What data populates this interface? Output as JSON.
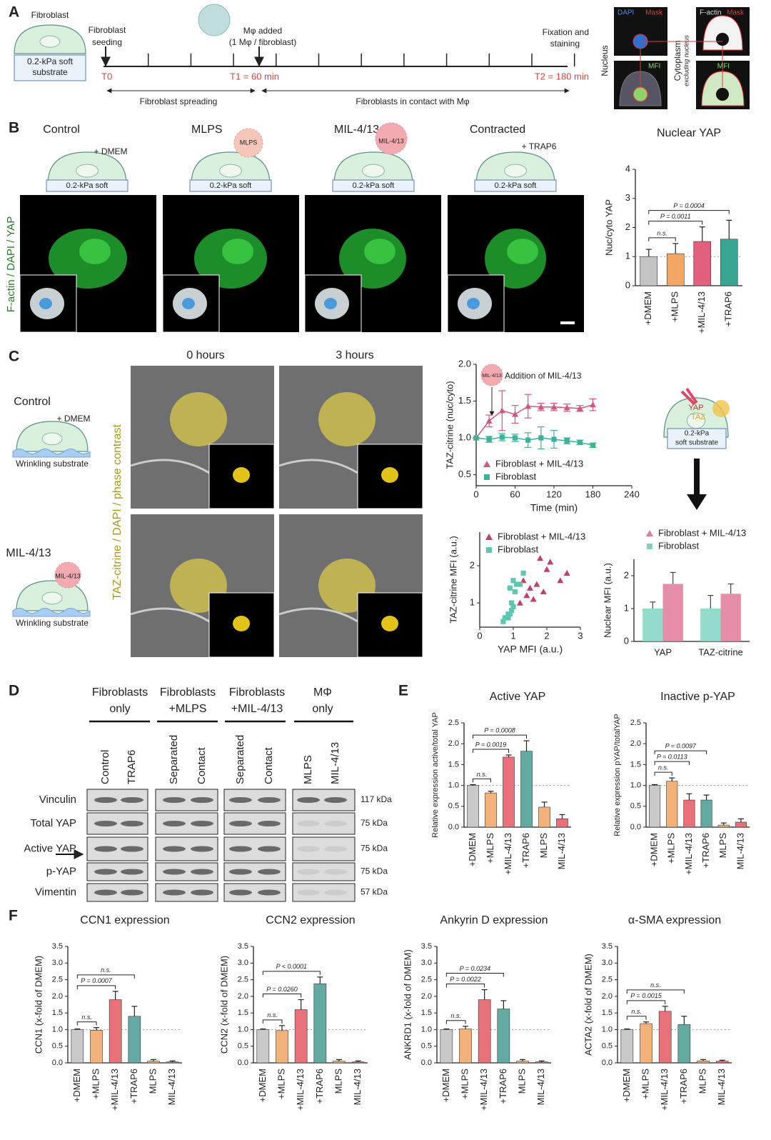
{
  "panel_a": {
    "label": "A",
    "cell_label": "Fibroblast",
    "substrate": [
      "0.2-kPa soft",
      "substrate"
    ],
    "seeding": [
      "Fibroblast",
      "seeding"
    ],
    "added": [
      "Mφ added",
      "(1 Mφ / fibroblast)"
    ],
    "fixation": [
      "Fixation and",
      "staining"
    ],
    "t0": "T0",
    "t1": "T1 = 60 min",
    "t2": "T2 = 180 min",
    "spreading": "Fibroblast spreading",
    "contact": "Fibroblasts in contact with Mφ",
    "mask_labels": [
      "DAPI",
      "Mask",
      "F-actin",
      "Mask",
      "MFI",
      "MFI"
    ],
    "nucleus": "Nucleus",
    "cytoplasm": [
      "Cytoplasm",
      "excluding nucleus"
    ]
  },
  "panel_b": {
    "label": "B",
    "conditions": [
      "Control",
      "MLPS",
      "MIL-4/13",
      "Contracted"
    ],
    "treatments": [
      "+ DMEM",
      "+ TRAP6"
    ],
    "macrophages": [
      "MLPS",
      "MIL-4/13"
    ],
    "substrate": "0.2-kPa soft",
    "stain": "F-actin / DAPI / YAP"
  },
  "panel_c": {
    "label": "C",
    "times": [
      "0 hours",
      "3 hours"
    ],
    "conditions": [
      "Control",
      "MIL-4/13"
    ],
    "treatment": "+ DMEM",
    "macrophage": "MIL-4/13",
    "substrate": "Wrinkling substrate",
    "stain": "TAZ-citrine / DAPI / phase contrast",
    "addition": "Addition of MIL-4/13",
    "addition_macrophage": "MIL-4/13",
    "diagram": [
      "YAP",
      "TAZ",
      "0.2-kPa",
      "soft substrate"
    ]
  },
  "panel_d": {
    "label": "D",
    "groups": [
      [
        "Fibroblasts",
        "only"
      ],
      [
        "Fibroblasts",
        "+MLPS"
      ],
      [
        "Fibroblasts",
        "+MIL-4/13"
      ],
      [
        "MΦ",
        "only"
      ]
    ],
    "lanes": [
      "Control",
      "TRAP6",
      "Separated",
      "Contact",
      "Separated",
      "Contact",
      "MLPS",
      "MIL-4/13"
    ],
    "proteins": [
      "Vinculin",
      "Total YAP",
      "Active YAP",
      "p-YAP",
      "Vimentin"
    ],
    "sizes": [
      "117 kDa",
      "75 kDa",
      "75 kDa",
      "75 kDa",
      "57 kDa"
    ]
  },
  "panel_e": {
    "label": "E"
  },
  "panel_f": {
    "label": "F"
  },
  "chart_data": [
    {
      "type": "bar",
      "title": "Nuclear YAP",
      "ylabel": "Nuc/cyto YAP",
      "categories": [
        "+DMEM",
        "+MLPS",
        "+MIL-4/13",
        "+TRAP6"
      ],
      "values": [
        1.0,
        1.1,
        1.52,
        1.6
      ],
      "errors": [
        0.25,
        0.35,
        0.5,
        0.65
      ],
      "colors": [
        "#c4c4c4",
        "#f4a765",
        "#e2607c",
        "#3aa593"
      ],
      "ylim": [
        0,
        4
      ],
      "yticks": [
        0,
        1,
        2,
        3,
        4
      ],
      "hline": 1,
      "annotations": [
        {
          "text": "n.s.",
          "pair": [
            0,
            1
          ]
        },
        {
          "text": "P = 0.0011",
          "pair": [
            0,
            2
          ]
        },
        {
          "text": "P = 0.0004",
          "pair": [
            0,
            3
          ]
        }
      ]
    },
    {
      "type": "line",
      "xlabel": "Time (min)",
      "ylabel": "TAZ-citrine (nuc/cyto)",
      "x": [
        0,
        20,
        40,
        60,
        80,
        100,
        120,
        140,
        160,
        180
      ],
      "xlim": [
        0,
        240
      ],
      "xticks": [
        0,
        60,
        120,
        180,
        240
      ],
      "ylim": [
        0.35,
        2.0
      ],
      "yticks": [
        {
          "value": 0.5,
          "label": "0.5"
        },
        {
          "value": 1,
          "label": "1.0"
        },
        {
          "value": 1.5,
          "label": "1.5"
        },
        {
          "value": 2,
          "label": "2.0"
        }
      ],
      "series": [
        {
          "name": "Fibroblast + MIL-4/13",
          "color": "#d4567e",
          "marker": "triangle",
          "values": [
            1.0,
            1.23,
            1.37,
            1.32,
            1.43,
            1.42,
            1.42,
            1.41,
            1.4,
            1.45
          ],
          "errors": [
            0,
            0.08,
            0.27,
            0.12,
            0.16,
            0.05,
            0.05,
            0.05,
            0.04,
            0.08
          ]
        },
        {
          "name": "Fibroblast",
          "color": "#3bb39a",
          "marker": "square",
          "values": [
            1.0,
            0.98,
            1.01,
            1.0,
            0.97,
            1.0,
            0.98,
            0.96,
            0.94,
            0.9
          ],
          "errors": [
            0,
            0.04,
            0.05,
            0.05,
            0.1,
            0.15,
            0.12,
            0.04,
            0.03,
            0.03
          ]
        }
      ]
    },
    {
      "type": "scatter",
      "xlabel": "YAP   MFI (a.u.)",
      "ylabel": "TAZ-citrine MFI (a.u.)",
      "xlim": [
        0,
        3
      ],
      "xticks": [
        0,
        1,
        2,
        3
      ],
      "ylim": [
        0.35,
        2.9
      ],
      "yticks": [
        1,
        2
      ],
      "series": [
        {
          "name": "Fibroblast + MIL-4/13",
          "color": "#c0406a",
          "marker": "triangle",
          "x": [
            1.2,
            1.4,
            1.5,
            1.6,
            1.7,
            1.9,
            2.0,
            2.1,
            2.4,
            2.6,
            1.3,
            1.8
          ],
          "values": [
            1.0,
            1.2,
            1.4,
            1.1,
            1.5,
            1.3,
            1.9,
            2.1,
            1.6,
            1.8,
            1.6,
            2.2
          ]
        },
        {
          "name": "Fibroblast",
          "color": "#5cc8b0",
          "marker": "square",
          "x": [
            0.7,
            0.75,
            0.8,
            0.85,
            0.9,
            0.95,
            1.0,
            1.05,
            1.1,
            0.9,
            1.0,
            1.2,
            0.85,
            1.3,
            0.95
          ],
          "values": [
            0.5,
            0.6,
            0.6,
            0.7,
            0.7,
            0.8,
            0.9,
            1.3,
            1.5,
            1.4,
            1.6,
            1.5,
            0.6,
            1.8,
            1.0
          ]
        }
      ]
    },
    {
      "type": "grouped_bar",
      "ylabel": "Nuclear MFI (a.u.)",
      "categories": [
        "YAP",
        "TAZ-citrine"
      ],
      "ylim": [
        0,
        2.5
      ],
      "yticks": [
        0,
        1,
        2
      ],
      "series": [
        {
          "name": "Fibroblast + MIL-4/13",
          "color": "#e27a98",
          "marker": "triangle",
          "values": [
            1.75,
            1.45
          ],
          "errors": [
            0.35,
            0.3
          ]
        },
        {
          "name": "Fibroblast",
          "color": "#7fd3bf",
          "marker": "square",
          "values": [
            1.0,
            1.0
          ],
          "errors": [
            0.2,
            0.4
          ]
        }
      ]
    },
    {
      "type": "bar",
      "title": "Active YAP",
      "ylabel": "Relative expression active/total YAP",
      "categories": [
        "+DMEM",
        "+MLPS",
        "+MIL-4/13",
        "+TRAP6",
        "MLPS",
        "MIL-4/13"
      ],
      "values": [
        1.0,
        0.82,
        1.68,
        1.82,
        0.48,
        0.2
      ],
      "errors": [
        0.02,
        0.04,
        0.05,
        0.25,
        0.12,
        0.1
      ],
      "colors": [
        "#c9c9c9",
        "#f2b27a",
        "#e9727a",
        "#62aaa2",
        "#f2b27a",
        "#e9727a"
      ],
      "ylim": [
        0,
        2.5
      ],
      "yticks": [
        {
          "value": 0,
          "label": "0.0"
        },
        {
          "value": 0.5,
          "label": "0.5"
        },
        {
          "value": 1,
          "label": "1.0"
        },
        {
          "value": 1.5,
          "label": "1.5"
        },
        {
          "value": 2,
          "label": "2.0"
        },
        {
          "value": 2.5,
          "label": "2.5"
        }
      ],
      "hline": 1,
      "annotations": [
        {
          "text": "n.s.",
          "pair": [
            0,
            1
          ]
        },
        {
          "text": "P = 0.0019",
          "pair": [
            0,
            2
          ]
        },
        {
          "text": "P = 0.0008",
          "pair": [
            0,
            3
          ]
        }
      ]
    },
    {
      "type": "bar",
      "title": "Inactive p-YAP",
      "ylabel": "Relative expression pYAP/totalYAP",
      "categories": [
        "+DMEM",
        "+MLPS",
        "+MIL-4/13",
        "+TRAP6",
        "MLPS",
        "MIL-4/13"
      ],
      "values": [
        1.0,
        1.1,
        0.65,
        0.65,
        0.05,
        0.12
      ],
      "errors": [
        0.02,
        0.08,
        0.15,
        0.12,
        0.05,
        0.08
      ],
      "colors": [
        "#c9c9c9",
        "#f2b27a",
        "#e9727a",
        "#62aaa2",
        "#f2b27a",
        "#e9727a"
      ],
      "ylim": [
        0,
        2.5
      ],
      "yticks": [
        {
          "value": 0,
          "label": "0.0"
        },
        {
          "value": 0.5,
          "label": "0.5"
        },
        {
          "value": 1,
          "label": "1.0"
        },
        {
          "value": 1.5,
          "label": "1.5"
        },
        {
          "value": 2,
          "label": "2.0"
        },
        {
          "value": 2.5,
          "label": "2.5"
        }
      ],
      "hline": 1,
      "annotations": [
        {
          "text": "n.s.",
          "pair": [
            0,
            1
          ]
        },
        {
          "text": "P = 0.0113",
          "pair": [
            0,
            2
          ]
        },
        {
          "text": "P = 0.0097",
          "pair": [
            0,
            3
          ]
        }
      ]
    },
    {
      "type": "bar",
      "title": "CCN1 expression",
      "ylabel": "CCN1 (x-fold of DMEM)",
      "categories": [
        "+DMEM",
        "+MLPS",
        "+MIL-4/13",
        "+TRAP6",
        "MLPS",
        "MIL-4/13"
      ],
      "values": [
        1.0,
        0.98,
        1.9,
        1.4,
        0.05,
        0.03
      ],
      "errors": [
        0.02,
        0.08,
        0.25,
        0.3,
        0.05,
        0.03
      ],
      "colors": [
        "#c9c9c9",
        "#f2b27a",
        "#e9727a",
        "#62aaa2",
        "#f2b27a",
        "#e9727a"
      ],
      "ylim": [
        0,
        3.5
      ],
      "yticks": [
        {
          "value": 0,
          "label": "0.0"
        },
        {
          "value": 0.5,
          "label": "0.5"
        },
        {
          "value": 1,
          "label": "1.0"
        },
        {
          "value": 1.5,
          "label": "1.5"
        },
        {
          "value": 2,
          "label": "2.0"
        },
        {
          "value": 2.5,
          "label": "2.5"
        },
        {
          "value": 3,
          "label": "3.0"
        },
        {
          "value": 3.5,
          "label": "3.5"
        }
      ],
      "hline": 1,
      "annotations": [
        {
          "text": "n.s.",
          "pair": [
            0,
            1
          ]
        },
        {
          "text": "P = 0.0007",
          "pair": [
            0,
            2
          ]
        },
        {
          "text": "n.s.",
          "pair": [
            0,
            3
          ]
        }
      ]
    },
    {
      "type": "bar",
      "title": "CCN2 expression",
      "ylabel": "CCN2 (x-fold of  DMEM)",
      "categories": [
        "+DMEM",
        "+MLPS",
        "+MIL-4/13",
        "+TRAP6",
        "MLPS",
        "MIL-4/13"
      ],
      "values": [
        1.0,
        0.97,
        1.6,
        2.38,
        0.05,
        0.03
      ],
      "errors": [
        0.02,
        0.15,
        0.3,
        0.2,
        0.05,
        0.03
      ],
      "colors": [
        "#c9c9c9",
        "#f2b27a",
        "#e9727a",
        "#62aaa2",
        "#f2b27a",
        "#e9727a"
      ],
      "ylim": [
        0,
        3.5
      ],
      "yticks": [
        {
          "value": 0,
          "label": "0.0"
        },
        {
          "value": 0.5,
          "label": "0.5"
        },
        {
          "value": 1,
          "label": "1.0"
        },
        {
          "value": 1.5,
          "label": "1.5"
        },
        {
          "value": 2,
          "label": "2.0"
        },
        {
          "value": 2.5,
          "label": "2.5"
        },
        {
          "value": 3,
          "label": "3.0"
        },
        {
          "value": 3.5,
          "label": "3.5"
        }
      ],
      "hline": 1,
      "annotations": [
        {
          "text": "n.s.",
          "pair": [
            0,
            1
          ]
        },
        {
          "text": "P = 0.0260",
          "pair": [
            0,
            2
          ]
        },
        {
          "text": "P < 0.0001",
          "pair": [
            0,
            3
          ]
        }
      ]
    },
    {
      "type": "bar",
      "title": "Ankyrin D expression",
      "ylabel": "ANKRD1 (x-fold of DMEM)",
      "categories": [
        "+DMEM",
        "+MLPS",
        "+MIL-4/13",
        "+TRAP6",
        "MLPS",
        "MIL-4/13"
      ],
      "values": [
        1.0,
        1.02,
        1.9,
        1.62,
        0.05,
        0.03
      ],
      "errors": [
        0.02,
        0.08,
        0.3,
        0.25,
        0.05,
        0.03
      ],
      "colors": [
        "#c9c9c9",
        "#f2b27a",
        "#e9727a",
        "#62aaa2",
        "#f2b27a",
        "#e9727a"
      ],
      "ylim": [
        0,
        3.5
      ],
      "yticks": [
        {
          "value": 0,
          "label": "0.0"
        },
        {
          "value": 0.5,
          "label": "0.5"
        },
        {
          "value": 1,
          "label": "1.0"
        },
        {
          "value": 1.5,
          "label": "1.5"
        },
        {
          "value": 2,
          "label": "2.0"
        },
        {
          "value": 2.5,
          "label": "2.5"
        },
        {
          "value": 3,
          "label": "3.0"
        },
        {
          "value": 3.5,
          "label": "3.5"
        }
      ],
      "hline": 1,
      "annotations": [
        {
          "text": "n.s.",
          "pair": [
            0,
            1
          ]
        },
        {
          "text": "P = 0.0022",
          "pair": [
            0,
            2
          ]
        },
        {
          "text": "P = 0.0234",
          "pair": [
            0,
            3
          ]
        }
      ]
    },
    {
      "type": "bar",
      "title": "α-SMA  expression",
      "ylabel": "ACTA2 (x-fold of DMEM)",
      "categories": [
        "+DMEM",
        "+MLPS",
        "+MIL-4/13",
        "+TRAP6",
        "MLPS",
        "MIL-4/13"
      ],
      "values": [
        1.0,
        1.18,
        1.55,
        1.15,
        0.06,
        0.05
      ],
      "errors": [
        0.02,
        0.05,
        0.15,
        0.25,
        0.04,
        0.03
      ],
      "colors": [
        "#c9c9c9",
        "#f2b27a",
        "#e9727a",
        "#62aaa2",
        "#f2b27a",
        "#e9727a"
      ],
      "ylim": [
        0,
        3.5
      ],
      "yticks": [
        {
          "value": 0,
          "label": "0.0"
        },
        {
          "value": 0.5,
          "label": "0.5"
        },
        {
          "value": 1,
          "label": "1.0"
        },
        {
          "value": 1.5,
          "label": "1.5"
        },
        {
          "value": 2,
          "label": "2.0"
        },
        {
          "value": 2.5,
          "label": "2.5"
        },
        {
          "value": 3,
          "label": "3.0"
        },
        {
          "value": 3.5,
          "label": "3.5"
        }
      ],
      "hline": 1,
      "annotations": [
        {
          "text": "n.s.",
          "pair": [
            0,
            1
          ]
        },
        {
          "text": "P = 0.0015",
          "pair": [
            0,
            2
          ]
        },
        {
          "text": "n.s.",
          "pair": [
            0,
            3
          ]
        }
      ]
    }
  ]
}
